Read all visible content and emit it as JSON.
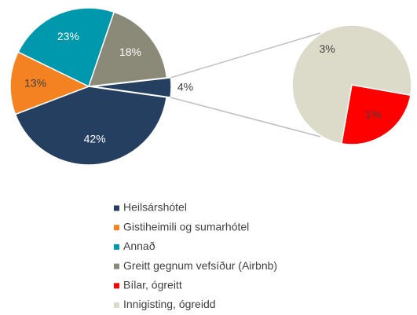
{
  "chart_data": {
    "type": "pie-of-pie",
    "categories": [
      "Heilsárshótel",
      "Gistiheimili og sumarhótel",
      "Annað",
      "Greitt gegnum vefsíður (Airbnb)",
      "Bílar, ógreitt",
      "Innigisting, ógreidd"
    ],
    "values": [
      42,
      13,
      23,
      18,
      1,
      3
    ],
    "value_labels": [
      "42%",
      "13%",
      "23%",
      "18%",
      "1%",
      "3%"
    ],
    "colors": [
      "#243f60",
      "#f58220",
      "#0098ac",
      "#8b8a78",
      "#ff0000",
      "#dcdac8"
    ],
    "other_value": 4,
    "other_value_label": "4%",
    "other_color": "#243f60",
    "legend": "bottom"
  }
}
